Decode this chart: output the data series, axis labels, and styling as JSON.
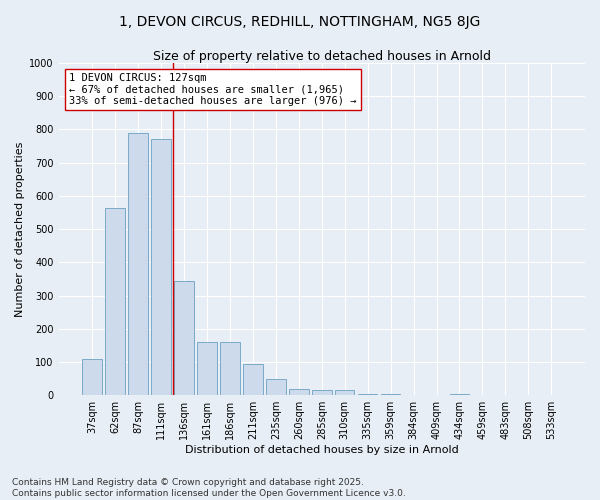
{
  "title_line1": "1, DEVON CIRCUS, REDHILL, NOTTINGHAM, NG5 8JG",
  "title_line2": "Size of property relative to detached houses in Arnold",
  "xlabel": "Distribution of detached houses by size in Arnold",
  "ylabel": "Number of detached properties",
  "categories": [
    "37sqm",
    "62sqm",
    "87sqm",
    "111sqm",
    "136sqm",
    "161sqm",
    "186sqm",
    "211sqm",
    "235sqm",
    "260sqm",
    "285sqm",
    "310sqm",
    "335sqm",
    "359sqm",
    "384sqm",
    "409sqm",
    "434sqm",
    "459sqm",
    "483sqm",
    "508sqm",
    "533sqm"
  ],
  "values": [
    110,
    565,
    790,
    770,
    345,
    160,
    160,
    95,
    50,
    20,
    15,
    15,
    5,
    5,
    0,
    0,
    5,
    0,
    0,
    0,
    0
  ],
  "bar_color": "#ccdaeb",
  "bar_edge_color": "#7aaac8",
  "vline_x_index": 4,
  "vline_color": "#cc0000",
  "annotation_text": "1 DEVON CIRCUS: 127sqm\n← 67% of detached houses are smaller (1,965)\n33% of semi-detached houses are larger (976) →",
  "annotation_box_color": "#ffffff",
  "annotation_box_edge_color": "#cc0000",
  "ylim": [
    0,
    1000
  ],
  "yticks": [
    0,
    100,
    200,
    300,
    400,
    500,
    600,
    700,
    800,
    900,
    1000
  ],
  "background_color": "#e8eef5",
  "plot_background_color": "#e8eef5",
  "footer_line1": "Contains HM Land Registry data © Crown copyright and database right 2025.",
  "footer_line2": "Contains public sector information licensed under the Open Government Licence v3.0.",
  "title_fontsize": 10,
  "subtitle_fontsize": 9,
  "axis_label_fontsize": 8,
  "tick_fontsize": 7,
  "annotation_fontsize": 7.5,
  "footer_fontsize": 6.5
}
